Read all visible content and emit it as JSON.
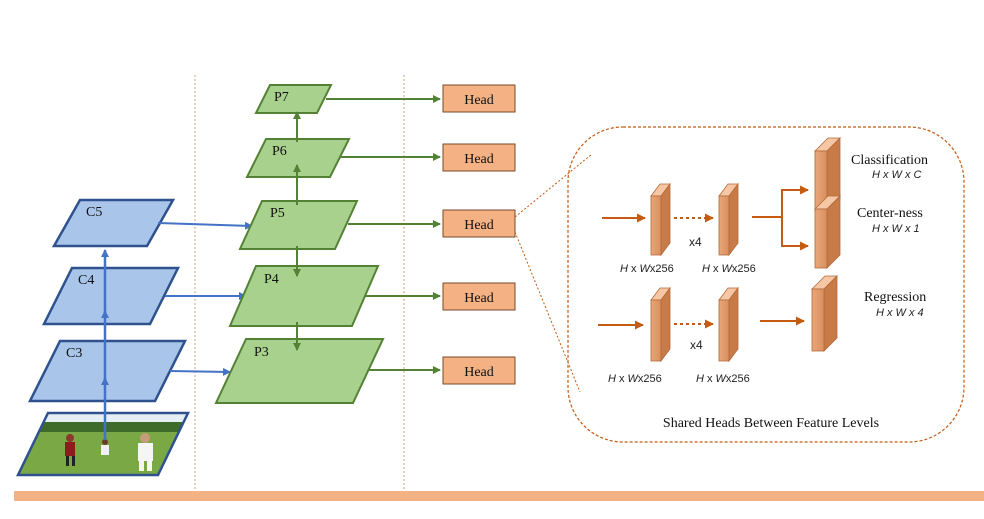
{
  "backbone": {
    "levels": [
      {
        "id": "c5",
        "label": "C5"
      },
      {
        "id": "c4",
        "label": "C4"
      },
      {
        "id": "c3",
        "label": "C3"
      }
    ]
  },
  "pyramid": {
    "levels": [
      {
        "id": "p7",
        "label": "P7"
      },
      {
        "id": "p6",
        "label": "P6"
      },
      {
        "id": "p5",
        "label": "P5"
      },
      {
        "id": "p4",
        "label": "P4"
      },
      {
        "id": "p3",
        "label": "P3"
      }
    ]
  },
  "heads": {
    "label": "Head",
    "count": 5
  },
  "detail": {
    "caption": "Shared Heads Between Feature Levels",
    "repeat_top": "x4",
    "repeat_bottom": "x4",
    "top_in_dims": [
      "H",
      "x",
      "W",
      "x256"
    ],
    "top_out_dims": [
      "H",
      "x",
      "W",
      "x256"
    ],
    "bottom_in_dims": [
      "H",
      "x",
      "W",
      "x256"
    ],
    "bottom_out_dims": [
      "H",
      "x",
      "W",
      "x256"
    ],
    "outputs": [
      {
        "id": "classification",
        "title": "Classification",
        "dims": "H x W x C"
      },
      {
        "id": "centerness",
        "title": "Center-ness",
        "dims": "H x W x 1"
      },
      {
        "id": "regression",
        "title": "Regression",
        "dims": "H x W x 4"
      }
    ]
  },
  "colors": {
    "backbone_fill": "#a9c5ea",
    "backbone_stroke": "#2f528f",
    "pyramid_fill": "#a9d18e",
    "pyramid_stroke": "#548235",
    "pyramid_arrow": "#548235",
    "head_fill": "#f4b183",
    "head_stroke": "#c55a11",
    "lateral_arrow": "#4472c4",
    "detail_arrow": "#c55a11",
    "footer_band": "#f4b183"
  }
}
